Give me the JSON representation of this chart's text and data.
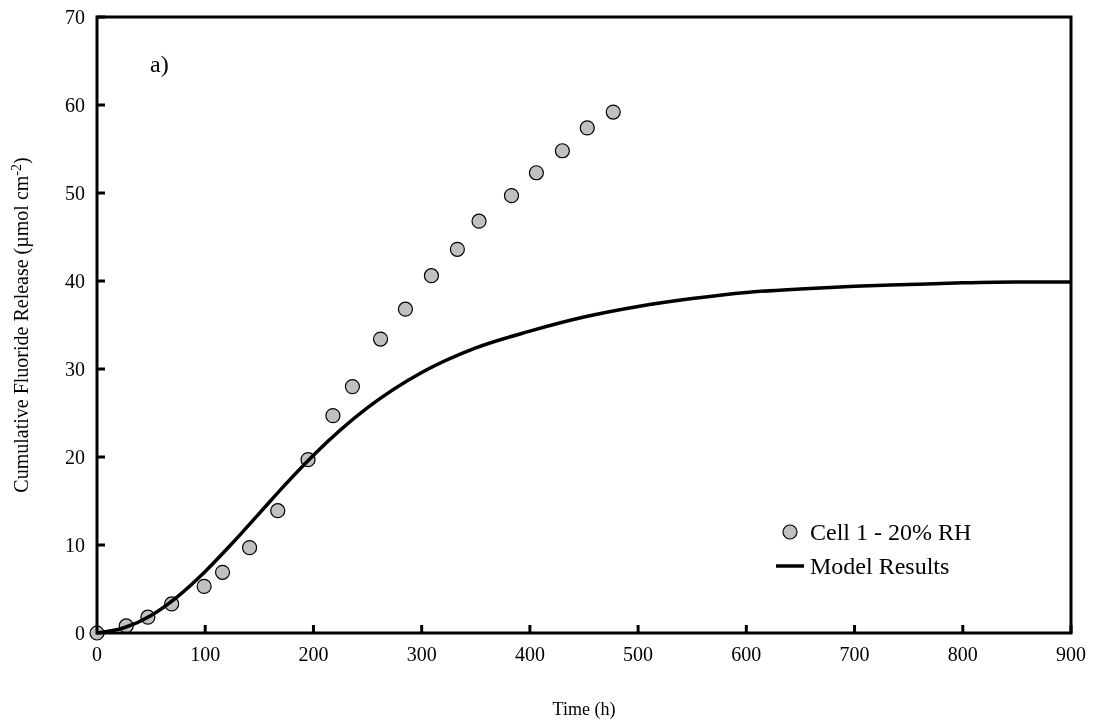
{
  "chart_data": {
    "type": "scatter",
    "xlabel": "Time (h)",
    "ylabel": "Cumulative Fluoride Release (µmol cm$^{-2}$)",
    "annotations": [
      "a)"
    ],
    "xlim": [
      0,
      900
    ],
    "ylim": [
      0,
      70
    ],
    "xticks": [
      0,
      100,
      200,
      300,
      400,
      500,
      600,
      700,
      800,
      900
    ],
    "yticks": [
      0,
      10,
      20,
      30,
      40,
      50,
      60,
      70
    ],
    "grid": false,
    "legend": "bottom right",
    "series": [
      {
        "name": "Cell 1 - 20% RH",
        "marker": "circle",
        "color": "#c0c0c0",
        "x": [
          0,
          27,
          47,
          69,
          99,
          116,
          141,
          167,
          195,
          218,
          236,
          262,
          285,
          309,
          333,
          353,
          383,
          406,
          430,
          453,
          477
        ],
        "values": [
          0,
          0.8,
          1.8,
          3.3,
          5.3,
          6.9,
          9.7,
          13.9,
          19.7,
          24.7,
          28,
          33.4,
          36.8,
          40.6,
          43.6,
          46.8,
          49.7,
          52.3,
          54.8,
          57.4,
          59.2
        ]
      },
      {
        "name": "Model Results",
        "type": "line",
        "marker": "none",
        "line_style": "solid",
        "color": "#000000",
        "x": [
          0,
          25,
          50,
          75,
          100,
          125,
          150,
          175,
          200,
          250,
          300,
          350,
          400,
          450,
          500,
          550,
          600,
          650,
          700,
          750,
          800,
          850,
          900
        ],
        "values": [
          0,
          0.6,
          2,
          4.2,
          7,
          10.2,
          13.6,
          17,
          20.2,
          25.6,
          29.6,
          32.4,
          34.3,
          35.9,
          37.1,
          38,
          38.7,
          39.1,
          39.4,
          39.6,
          39.8,
          39.9,
          39.9
        ]
      }
    ]
  }
}
